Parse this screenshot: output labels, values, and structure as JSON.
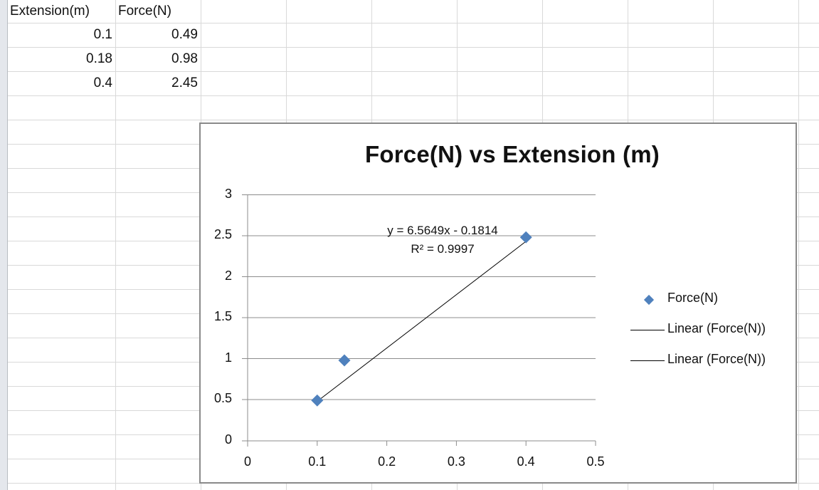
{
  "spreadsheet": {
    "headers": [
      "Extension(m)",
      "Force(N)"
    ],
    "rows": [
      [
        "0.1",
        "0.49"
      ],
      [
        "0.18",
        "0.98"
      ],
      [
        "0.4",
        "2.45"
      ]
    ]
  },
  "chart": {
    "title": "Force(N) vs Extension (m)",
    "trendline_equation": "y = 6.5649x - 0.1814",
    "trendline_r2": "R² = 0.9997",
    "marker_color": "#4F81BD",
    "legend": [
      {
        "label": "Force(N)",
        "kind": "marker"
      },
      {
        "label": "Linear (Force(N))",
        "kind": "line"
      },
      {
        "label": "Linear (Force(N))",
        "kind": "line"
      }
    ],
    "y_ticks": [
      "0",
      "0.5",
      "1",
      "1.5",
      "2",
      "2.5",
      "3"
    ],
    "x_ticks": [
      "0",
      "0.1",
      "0.2",
      "0.3",
      "0.4",
      "0.5"
    ]
  },
  "chart_data": {
    "type": "scatter",
    "title": "Force(N) vs Extension (m)",
    "xlabel": "",
    "ylabel": "",
    "x": [
      0.1,
      0.18,
      0.4
    ],
    "series": [
      {
        "name": "Force(N)",
        "values": [
          0.49,
          0.98,
          2.45
        ]
      }
    ],
    "trendline": {
      "type": "linear",
      "name": "Linear (Force(N))",
      "slope": 6.5649,
      "intercept": -0.1814,
      "r_squared": 0.9997,
      "equation": "y = 6.5649x - 0.1814"
    },
    "xlim": [
      0,
      0.5
    ],
    "ylim": [
      0,
      3
    ],
    "x_ticks": [
      0,
      0.1,
      0.2,
      0.3,
      0.4,
      0.5
    ],
    "y_ticks": [
      0,
      0.5,
      1,
      1.5,
      2,
      2.5,
      3
    ],
    "grid": "horizontal major gridlines",
    "legend_position": "right"
  }
}
